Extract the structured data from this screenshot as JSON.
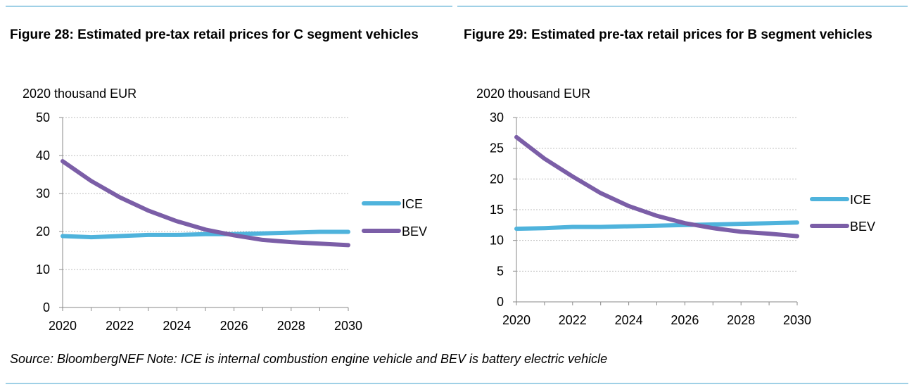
{
  "colors": {
    "ice": "#4fb3dc",
    "bev": "#7b5ea7",
    "rule": "#9fd0e6",
    "grid": "#bdbdbd"
  },
  "charts": {
    "c": {
      "title": "Figure 28: Estimated pre-tax retail prices for C segment vehicles"
    },
    "b": {
      "title": "Figure 29: Estimated pre-tax retail prices for B segment vehicles"
    }
  },
  "source": "Source: BloombergNEF Note: ICE is internal combustion engine vehicle and BEV is battery electric vehicle",
  "chart_data": [
    {
      "type": "line",
      "title": "Figure 28: Estimated pre-tax retail prices for C segment vehicles",
      "ylabel": "2020 thousand EUR",
      "xlabel": "",
      "ylim": [
        0,
        50
      ],
      "yticks": [
        0,
        10,
        20,
        30,
        40,
        50
      ],
      "xticks": [
        2020,
        2022,
        2024,
        2026,
        2028,
        2030
      ],
      "x": [
        2020,
        2021,
        2022,
        2023,
        2024,
        2025,
        2026,
        2027,
        2028,
        2029,
        2030
      ],
      "grid": true,
      "legend": "right",
      "series": [
        {
          "name": "ICE",
          "values": [
            18.8,
            18.5,
            18.8,
            19.1,
            19.1,
            19.3,
            19.3,
            19.5,
            19.7,
            19.9,
            19.9
          ]
        },
        {
          "name": "BEV",
          "values": [
            38.5,
            33.3,
            29.0,
            25.5,
            22.7,
            20.5,
            19.0,
            17.8,
            17.2,
            16.8,
            16.4
          ]
        }
      ]
    },
    {
      "type": "line",
      "title": "Figure 29: Estimated pre-tax retail prices for B segment vehicles",
      "ylabel": "2020 thousand EUR",
      "xlabel": "",
      "ylim": [
        0,
        30
      ],
      "yticks": [
        0,
        5,
        10,
        15,
        20,
        25,
        30
      ],
      "xticks": [
        2020,
        2022,
        2024,
        2026,
        2028,
        2030
      ],
      "x": [
        2020,
        2021,
        2022,
        2023,
        2024,
        2025,
        2026,
        2027,
        2028,
        2029,
        2030
      ],
      "grid": true,
      "legend": "right",
      "series": [
        {
          "name": "ICE",
          "values": [
            11.9,
            12.0,
            12.2,
            12.2,
            12.3,
            12.4,
            12.5,
            12.6,
            12.7,
            12.8,
            12.9
          ]
        },
        {
          "name": "BEV",
          "values": [
            26.8,
            23.3,
            20.4,
            17.7,
            15.6,
            14.0,
            12.8,
            12.0,
            11.4,
            11.1,
            10.7
          ]
        }
      ]
    }
  ]
}
